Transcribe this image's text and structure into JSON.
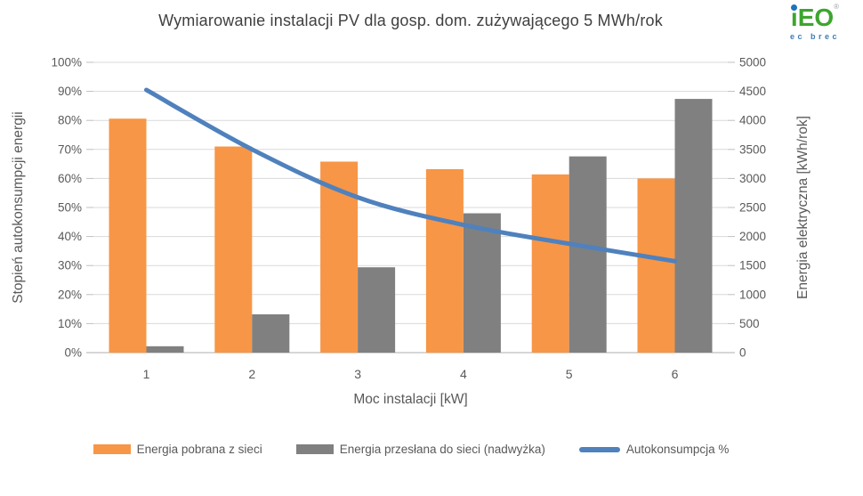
{
  "logo": {
    "i": "i",
    "eo": "EO",
    "reg": "®",
    "tagline": "ec brec",
    "green": "#3DA52E",
    "blue": "#1B75BC"
  },
  "chart_data": {
    "type": "combo",
    "title": "Wymiarowanie instalacji PV dla gosp. dom. zużywającego 5 MWh/rok",
    "xlabel": "Moc instalacji [kW]",
    "ylabel_left": "Stopień autokonsumpcji energii",
    "ylabel_right": "Energia elektryczna [kWh/rok]",
    "categories": [
      "1",
      "2",
      "3",
      "4",
      "5",
      "6"
    ],
    "series": [
      {
        "name": "Energia pobrana z sieci",
        "type": "bar",
        "axis": "right",
        "color": "#F79646",
        "values": [
          4030,
          3550,
          3290,
          3160,
          3070,
          3000
        ]
      },
      {
        "name": "Energia przesłana do sieci (nadwyżka)",
        "type": "bar",
        "axis": "right",
        "color": "#808080",
        "values": [
          110,
          660,
          1470,
          2400,
          3380,
          4370
        ]
      },
      {
        "name": "Autokonsumpcja %",
        "type": "line",
        "axis": "left",
        "color": "#4F81BD",
        "values": [
          90.5,
          70,
          53.5,
          44,
          37.5,
          31.5
        ]
      }
    ],
    "ylim_left": [
      0,
      100
    ],
    "ylim_right": [
      0,
      5000
    ],
    "left_tick_labels": [
      "0%",
      "10%",
      "20%",
      "30%",
      "40%",
      "50%",
      "60%",
      "70%",
      "80%",
      "90%",
      "100%"
    ],
    "right_tick_labels": [
      "0",
      "500",
      "1000",
      "1500",
      "2000",
      "2500",
      "3000",
      "3500",
      "4000",
      "4500",
      "5000"
    ],
    "grid": true,
    "legend_position": "bottom",
    "gridline_color": "#D9D9D9",
    "axis_line_color": "#BFBFBF",
    "tick_text_color": "#595959",
    "title_color": "#404040"
  }
}
